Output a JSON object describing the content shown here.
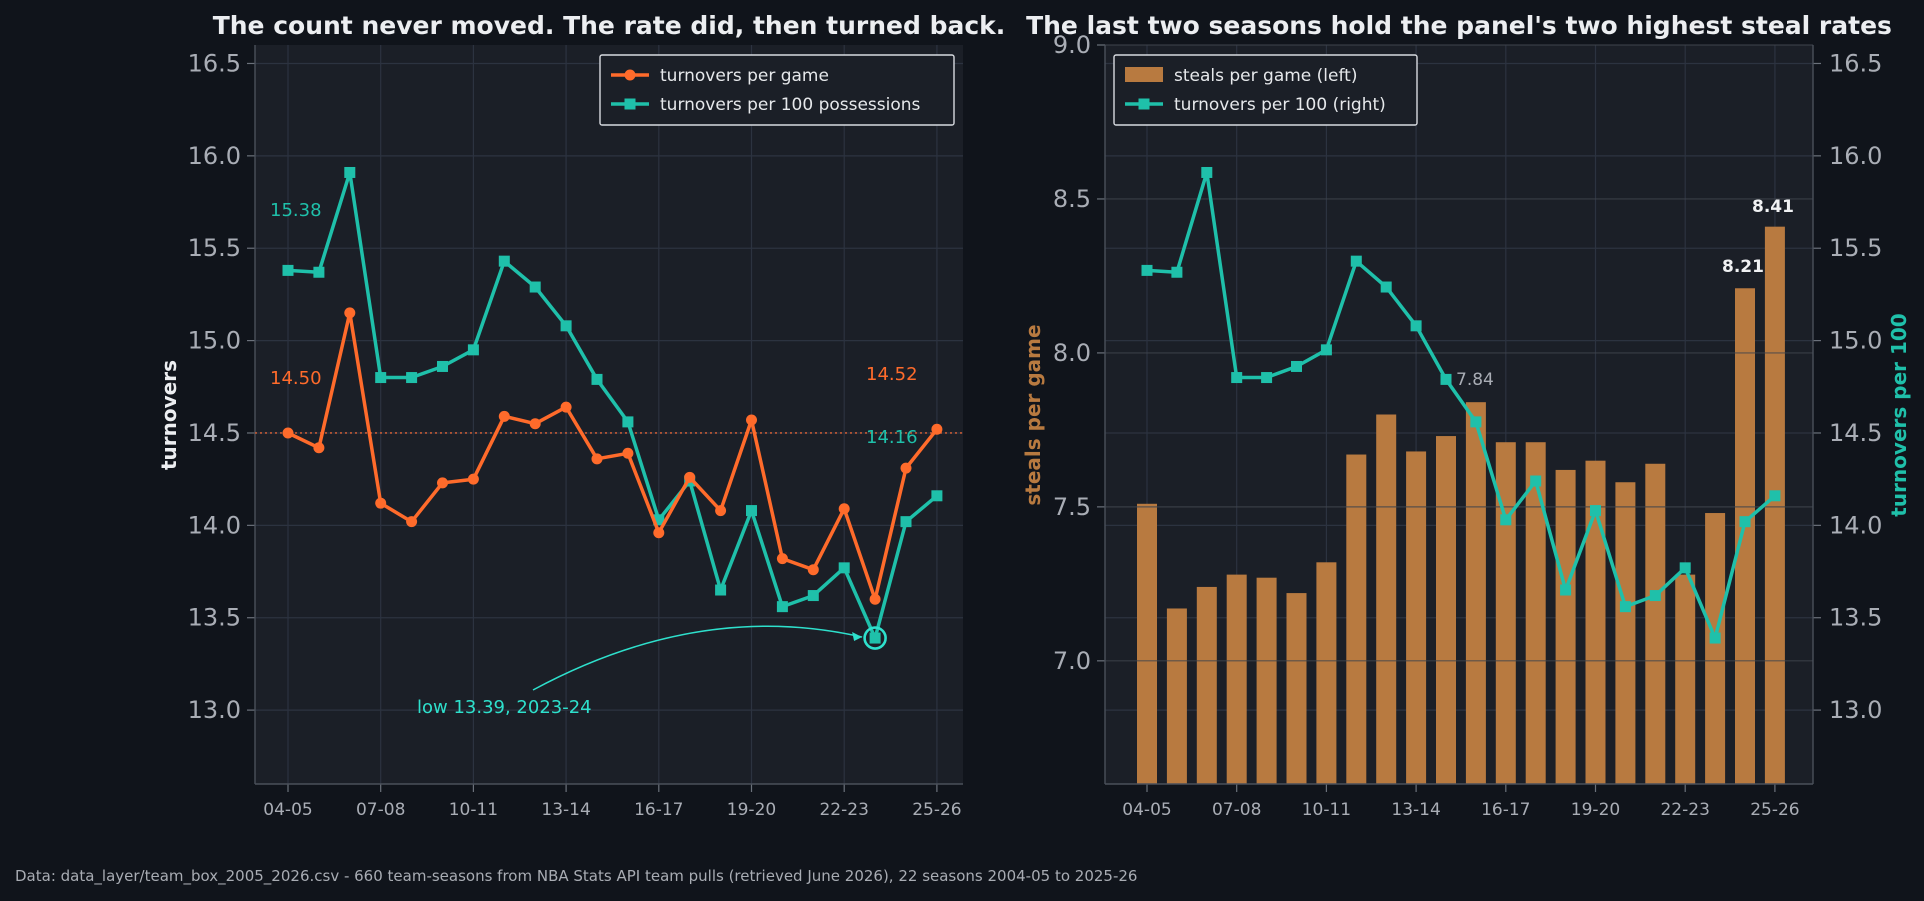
{
  "chart_data": [
    {
      "type": "line",
      "title": "The count never moved. The rate did, then turned back.",
      "ylabel": "turnovers",
      "ylim": [
        12.6,
        16.6
      ],
      "yticks": [
        "13.0",
        "13.5",
        "14.0",
        "14.5",
        "15.0",
        "15.5",
        "16.0",
        "16.5"
      ],
      "xtick_labels": [
        "04-05",
        "07-08",
        "10-11",
        "13-14",
        "16-17",
        "19-20",
        "22-23",
        "25-26"
      ],
      "seasons": [
        "2004-05",
        "2005-06",
        "2006-07",
        "2007-08",
        "2008-09",
        "2009-10",
        "2010-11",
        "2011-12",
        "2012-13",
        "2013-14",
        "2014-15",
        "2015-16",
        "2016-17",
        "2017-18",
        "2018-19",
        "2019-20",
        "2020-21",
        "2021-22",
        "2022-23",
        "2023-24",
        "2024-25",
        "2025-26"
      ],
      "reference_line": 14.5,
      "legend_position": "top-right",
      "grid": true,
      "series": [
        {
          "name": "turnovers per game",
          "color": "#ff6b2b",
          "marker": "circle",
          "values": [
            14.5,
            14.42,
            15.15,
            14.12,
            14.02,
            14.23,
            14.25,
            14.59,
            14.55,
            14.64,
            14.36,
            14.39,
            13.96,
            14.26,
            14.08,
            14.57,
            13.82,
            13.76,
            14.09,
            13.6,
            14.31,
            14.52
          ]
        },
        {
          "name": "turnovers per 100 possessions",
          "color": "#1fc0aa",
          "marker": "square",
          "values": [
            15.38,
            15.37,
            15.91,
            14.8,
            14.8,
            14.86,
            14.95,
            15.43,
            15.29,
            15.08,
            14.79,
            14.56,
            14.03,
            14.24,
            13.65,
            14.08,
            13.56,
            13.62,
            13.77,
            13.39,
            14.02,
            14.16
          ]
        }
      ],
      "labels": {
        "first_per100": "15.38",
        "first_per_game": "14.50",
        "last_per_game": "14.52",
        "last_per100": "14.16"
      },
      "annotation": "low 13.39, 2023-24"
    },
    {
      "type": "bar",
      "title": "The last two seasons hold the panel's two highest steal rates",
      "ylabel": "steals per game",
      "ylabel_right": "turnovers per 100",
      "ylim": [
        6.6,
        9.0
      ],
      "yticks": [
        "7.0",
        "7.5",
        "8.0",
        "8.5",
        "9.0"
      ],
      "ylim_right": [
        12.6,
        16.6
      ],
      "yticks_right": [
        "13.0",
        "13.5",
        "14.0",
        "14.5",
        "15.0",
        "15.5",
        "16.0",
        "16.5"
      ],
      "xtick_labels": [
        "04-05",
        "07-08",
        "10-11",
        "13-14",
        "16-17",
        "19-20",
        "22-23",
        "25-26"
      ],
      "legend_position": "top-left",
      "grid": true,
      "series": [
        {
          "name": "steals per game (left)",
          "color": "#b87a40",
          "values": [
            7.51,
            7.17,
            7.24,
            7.28,
            7.27,
            7.22,
            7.32,
            7.67,
            7.8,
            7.68,
            7.73,
            7.84,
            7.71,
            7.71,
            7.62,
            7.65,
            7.58,
            7.64,
            7.28,
            7.48,
            8.21,
            8.41
          ]
        },
        {
          "name": "turnovers per 100 (right)",
          "color": "#1fc0aa",
          "marker": "square",
          "values": [
            15.38,
            15.37,
            15.91,
            14.8,
            14.8,
            14.86,
            14.95,
            15.43,
            15.29,
            15.08,
            14.79,
            14.56,
            14.03,
            14.24,
            13.65,
            14.08,
            13.56,
            13.62,
            13.77,
            13.39,
            14.02,
            14.16
          ]
        }
      ],
      "labels": {
        "mid": "7.84",
        "second_highest": "8.21",
        "highest": "8.41"
      }
    }
  ],
  "footer": "Data: data_layer/team_box_2005_2026.csv - 660 team-seasons from NBA Stats API team pulls (retrieved June 2026), 22 seasons 2004-05 to 2025-26"
}
